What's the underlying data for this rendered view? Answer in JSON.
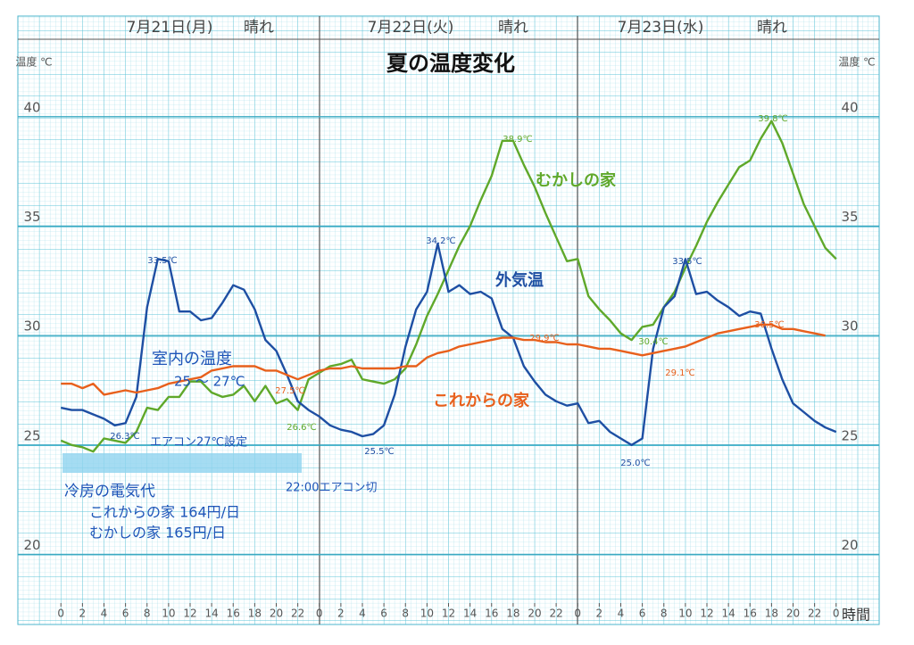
{
  "chart_data": {
    "type": "line",
    "title": "夏の温度変化",
    "days": [
      {
        "date": "7月21日(月)",
        "weather": "晴れ"
      },
      {
        "date": "7月22日(火)",
        "weather": "晴れ"
      },
      {
        "date": "7月23日(水)",
        "weather": "晴れ"
      }
    ],
    "y_label": "温度 ℃",
    "x_label": "時間",
    "x": [
      0,
      1,
      2,
      3,
      4,
      5,
      6,
      7,
      8,
      9,
      10,
      11,
      12,
      13,
      14,
      15,
      16,
      17,
      18,
      19,
      20,
      21,
      22,
      23,
      24,
      25,
      26,
      27,
      28,
      29,
      30,
      31,
      32,
      33,
      34,
      35,
      36,
      37,
      38,
      39,
      40,
      41,
      42,
      43,
      44,
      45,
      46,
      47,
      48,
      49,
      50,
      51,
      52,
      53,
      54,
      55,
      56,
      57,
      58,
      59,
      60,
      61,
      62,
      63,
      64,
      65,
      66,
      67,
      68,
      69,
      70,
      71,
      72
    ],
    "series": [
      {
        "name": "むかしの家",
        "color": "#5fa82a",
        "values": [
          25.2,
          25.0,
          24.9,
          24.7,
          25.3,
          25.2,
          25.1,
          25.6,
          26.7,
          26.6,
          27.2,
          27.2,
          27.9,
          27.9,
          27.4,
          27.2,
          27.3,
          27.7,
          27.0,
          27.7,
          26.9,
          27.1,
          26.6,
          28.0,
          28.3,
          28.6,
          28.7,
          28.9,
          28.0,
          27.9,
          27.8,
          28.0,
          28.5,
          29.6,
          30.9,
          31.9,
          33.0,
          34.1,
          35.0,
          36.2,
          37.3,
          38.9,
          38.9,
          37.8,
          36.8,
          35.6,
          34.5,
          33.4,
          33.5,
          31.8,
          31.2,
          30.7,
          30.1,
          29.8,
          30.4,
          30.5,
          31.3,
          32.0,
          33.1,
          34.1,
          35.2,
          36.1,
          36.9,
          37.7,
          38.0,
          39.0,
          39.8,
          38.8,
          37.4,
          36.0,
          35.0,
          34.0,
          33.5
        ]
      },
      {
        "name": "外気温",
        "color": "#1e4fa3",
        "values": [
          26.7,
          26.6,
          26.6,
          26.4,
          26.2,
          25.9,
          26.0,
          27.2,
          31.3,
          33.5,
          33.4,
          31.1,
          31.1,
          30.7,
          30.8,
          31.5,
          32.3,
          32.1,
          31.2,
          29.8,
          29.3,
          28.2,
          27.0,
          26.6,
          26.3,
          25.9,
          25.7,
          25.6,
          25.4,
          25.5,
          25.9,
          27.3,
          29.5,
          31.2,
          32.0,
          34.2,
          32.0,
          32.3,
          31.9,
          32.0,
          31.7,
          30.3,
          29.9,
          28.6,
          27.9,
          27.3,
          27.0,
          26.8,
          26.9,
          26.0,
          26.1,
          25.6,
          25.3,
          25.0,
          25.3,
          29.4,
          31.3,
          31.8,
          33.5,
          31.9,
          32.0,
          31.6,
          31.3,
          30.9,
          31.1,
          31.0,
          29.4,
          28.0,
          26.9,
          26.5,
          26.1,
          25.8,
          25.6
        ]
      },
      {
        "name": "これからの家",
        "color": "#e8601c",
        "values": [
          27.8,
          27.8,
          27.6,
          27.8,
          27.3,
          27.4,
          27.5,
          27.4,
          27.5,
          27.6,
          27.8,
          27.9,
          28.0,
          28.1,
          28.4,
          28.5,
          28.6,
          28.6,
          28.6,
          28.4,
          28.4,
          28.2,
          28.0,
          28.2,
          28.4,
          28.5,
          28.5,
          28.6,
          28.5,
          28.5,
          28.5,
          28.5,
          28.6,
          28.6,
          29.0,
          29.2,
          29.3,
          29.5,
          29.6,
          29.7,
          29.8,
          29.9,
          29.9,
          29.8,
          29.8,
          29.7,
          29.7,
          29.6,
          29.6,
          29.5,
          29.4,
          29.4,
          29.3,
          29.2,
          29.1,
          29.2,
          29.3,
          29.4,
          29.5,
          29.7,
          29.9,
          30.1,
          30.2,
          30.3,
          30.4,
          30.5,
          30.5,
          30.3,
          30.3,
          30.2,
          30.1,
          30.0,
          null
        ]
      }
    ],
    "point_labels": [
      "33.5℃",
      "34.2℃",
      "38.9℃",
      "25.5℃",
      "25.0℃",
      "33.5℃",
      "39.8℃",
      "26.3℃",
      "26.6℃",
      "27.5℃",
      "29.9℃",
      "29.1℃",
      "30.4℃",
      "30.5℃"
    ],
    "annotations": [
      "室内の温度",
      "25 〜 27℃",
      "エアコン27℃設定",
      "22:00エアコン切",
      "冷房の電気代",
      "これからの家 164円/日",
      "むかしの家 165円/日"
    ],
    "xlim": [
      -4,
      76
    ],
    "ylim": [
      16.8,
      44.6
    ],
    "xticks": [
      0,
      2,
      4,
      6,
      8,
      10,
      12,
      14,
      16,
      18,
      20,
      22,
      {
        "value": 24,
        "label": "0"
      },
      {
        "value": 26,
        "label": "2"
      },
      {
        "value": 28,
        "label": "4"
      },
      {
        "value": 30,
        "label": "6"
      },
      {
        "value": 32,
        "label": "8"
      },
      {
        "value": 34,
        "label": "10"
      },
      {
        "value": 36,
        "label": "12"
      },
      {
        "value": 38,
        "label": "14"
      },
      {
        "value": 40,
        "label": "16"
      },
      {
        "value": 42,
        "label": "18"
      },
      {
        "value": 44,
        "label": "20"
      },
      {
        "value": 46,
        "label": "22"
      },
      {
        "value": 48,
        "label": "0"
      },
      {
        "value": 50,
        "label": "2"
      },
      {
        "value": 52,
        "label": "4"
      },
      {
        "value": 54,
        "label": "6"
      },
      {
        "value": 56,
        "label": "8"
      },
      {
        "value": 58,
        "label": "10"
      },
      {
        "value": 60,
        "label": "12"
      },
      {
        "value": 62,
        "label": "14"
      },
      {
        "value": 64,
        "label": "16"
      },
      {
        "value": 66,
        "label": "18"
      },
      {
        "value": 68,
        "label": "20"
      },
      {
        "value": 70,
        "label": "22"
      },
      {
        "value": 72,
        "label": "0"
      }
    ],
    "yticks": [
      20,
      25,
      30,
      35,
      40
    ],
    "grid": true
  }
}
